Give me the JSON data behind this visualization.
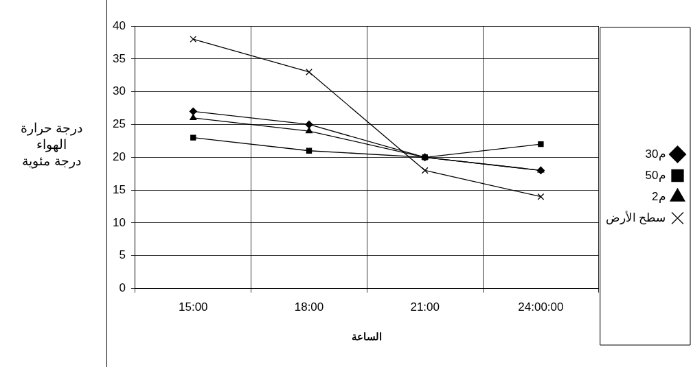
{
  "chart_data": {
    "type": "line",
    "xlabel": "الساعة",
    "ylabel": "درجة حرارة\nالهواء\nدرجة مئوية",
    "categories": [
      "15:00",
      "18:00",
      "21:00",
      "24:00:00"
    ],
    "series": [
      {
        "name": "30م",
        "color": "#000000",
        "marker": "diamond",
        "values": [
          27,
          25,
          20,
          18
        ]
      },
      {
        "name": "50م",
        "color": "#000000",
        "marker": "square",
        "values": [
          23,
          21,
          20,
          22
        ]
      },
      {
        "name": "2م",
        "color": "#000000",
        "marker": "triangle",
        "values": [
          26,
          24,
          20,
          18
        ]
      },
      {
        "name": "سطح الأرض",
        "color": "#000000",
        "marker": "cross",
        "values": [
          38,
          33,
          18,
          14
        ]
      }
    ],
    "ylim": [
      0,
      40
    ],
    "yticks": [
      0,
      5,
      10,
      15,
      20,
      25,
      30,
      35,
      40
    ],
    "grid": true,
    "legend": "right",
    "line_style": "solid"
  }
}
